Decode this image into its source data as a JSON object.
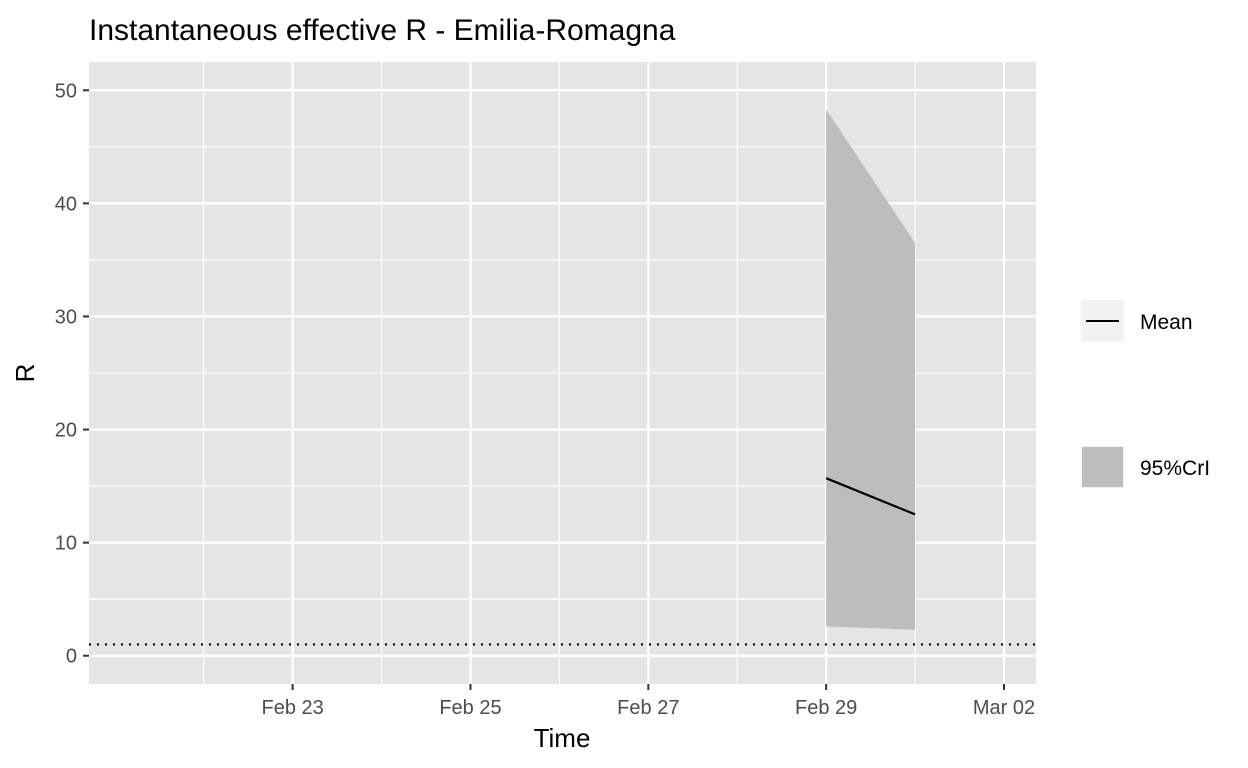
{
  "chart_data": {
    "type": "line",
    "title": "Instantaneous effective R -  Emilia-Romagna",
    "xlabel": "Time",
    "ylabel": "R",
    "x_domain": [
      "2020-02-21",
      "2020-03-02"
    ],
    "xlim": [
      "2020-02-21",
      "2020-03-02"
    ],
    "ylim": [
      0,
      50
    ],
    "x_ticks": [
      {
        "date": "2020-02-23",
        "label": "Feb 23"
      },
      {
        "date": "2020-02-25",
        "label": "Feb 25"
      },
      {
        "date": "2020-02-27",
        "label": "Feb 27"
      },
      {
        "date": "2020-02-29",
        "label": "Feb 29"
      },
      {
        "date": "2020-03-02",
        "label": "Mar 02"
      }
    ],
    "y_ticks": [
      0,
      10,
      20,
      30,
      40,
      50
    ],
    "reference_line": {
      "y": 1,
      "style": "dotted"
    },
    "series": [
      {
        "name": "Mean",
        "kind": "line",
        "color": "#000000",
        "x": [
          "2020-02-29",
          "2020-03-01"
        ],
        "values": [
          15.7,
          12.5
        ]
      },
      {
        "name": "95%CrI",
        "kind": "ribbon",
        "color": "#bdbdbd",
        "x": [
          "2020-02-29",
          "2020-03-01"
        ],
        "lower": [
          2.6,
          2.3
        ],
        "upper": [
          48.3,
          36.5
        ]
      }
    ],
    "grid": true,
    "legend_position": "right",
    "panel_background": "#e5e5e5",
    "grid_color": "#ffffff"
  }
}
